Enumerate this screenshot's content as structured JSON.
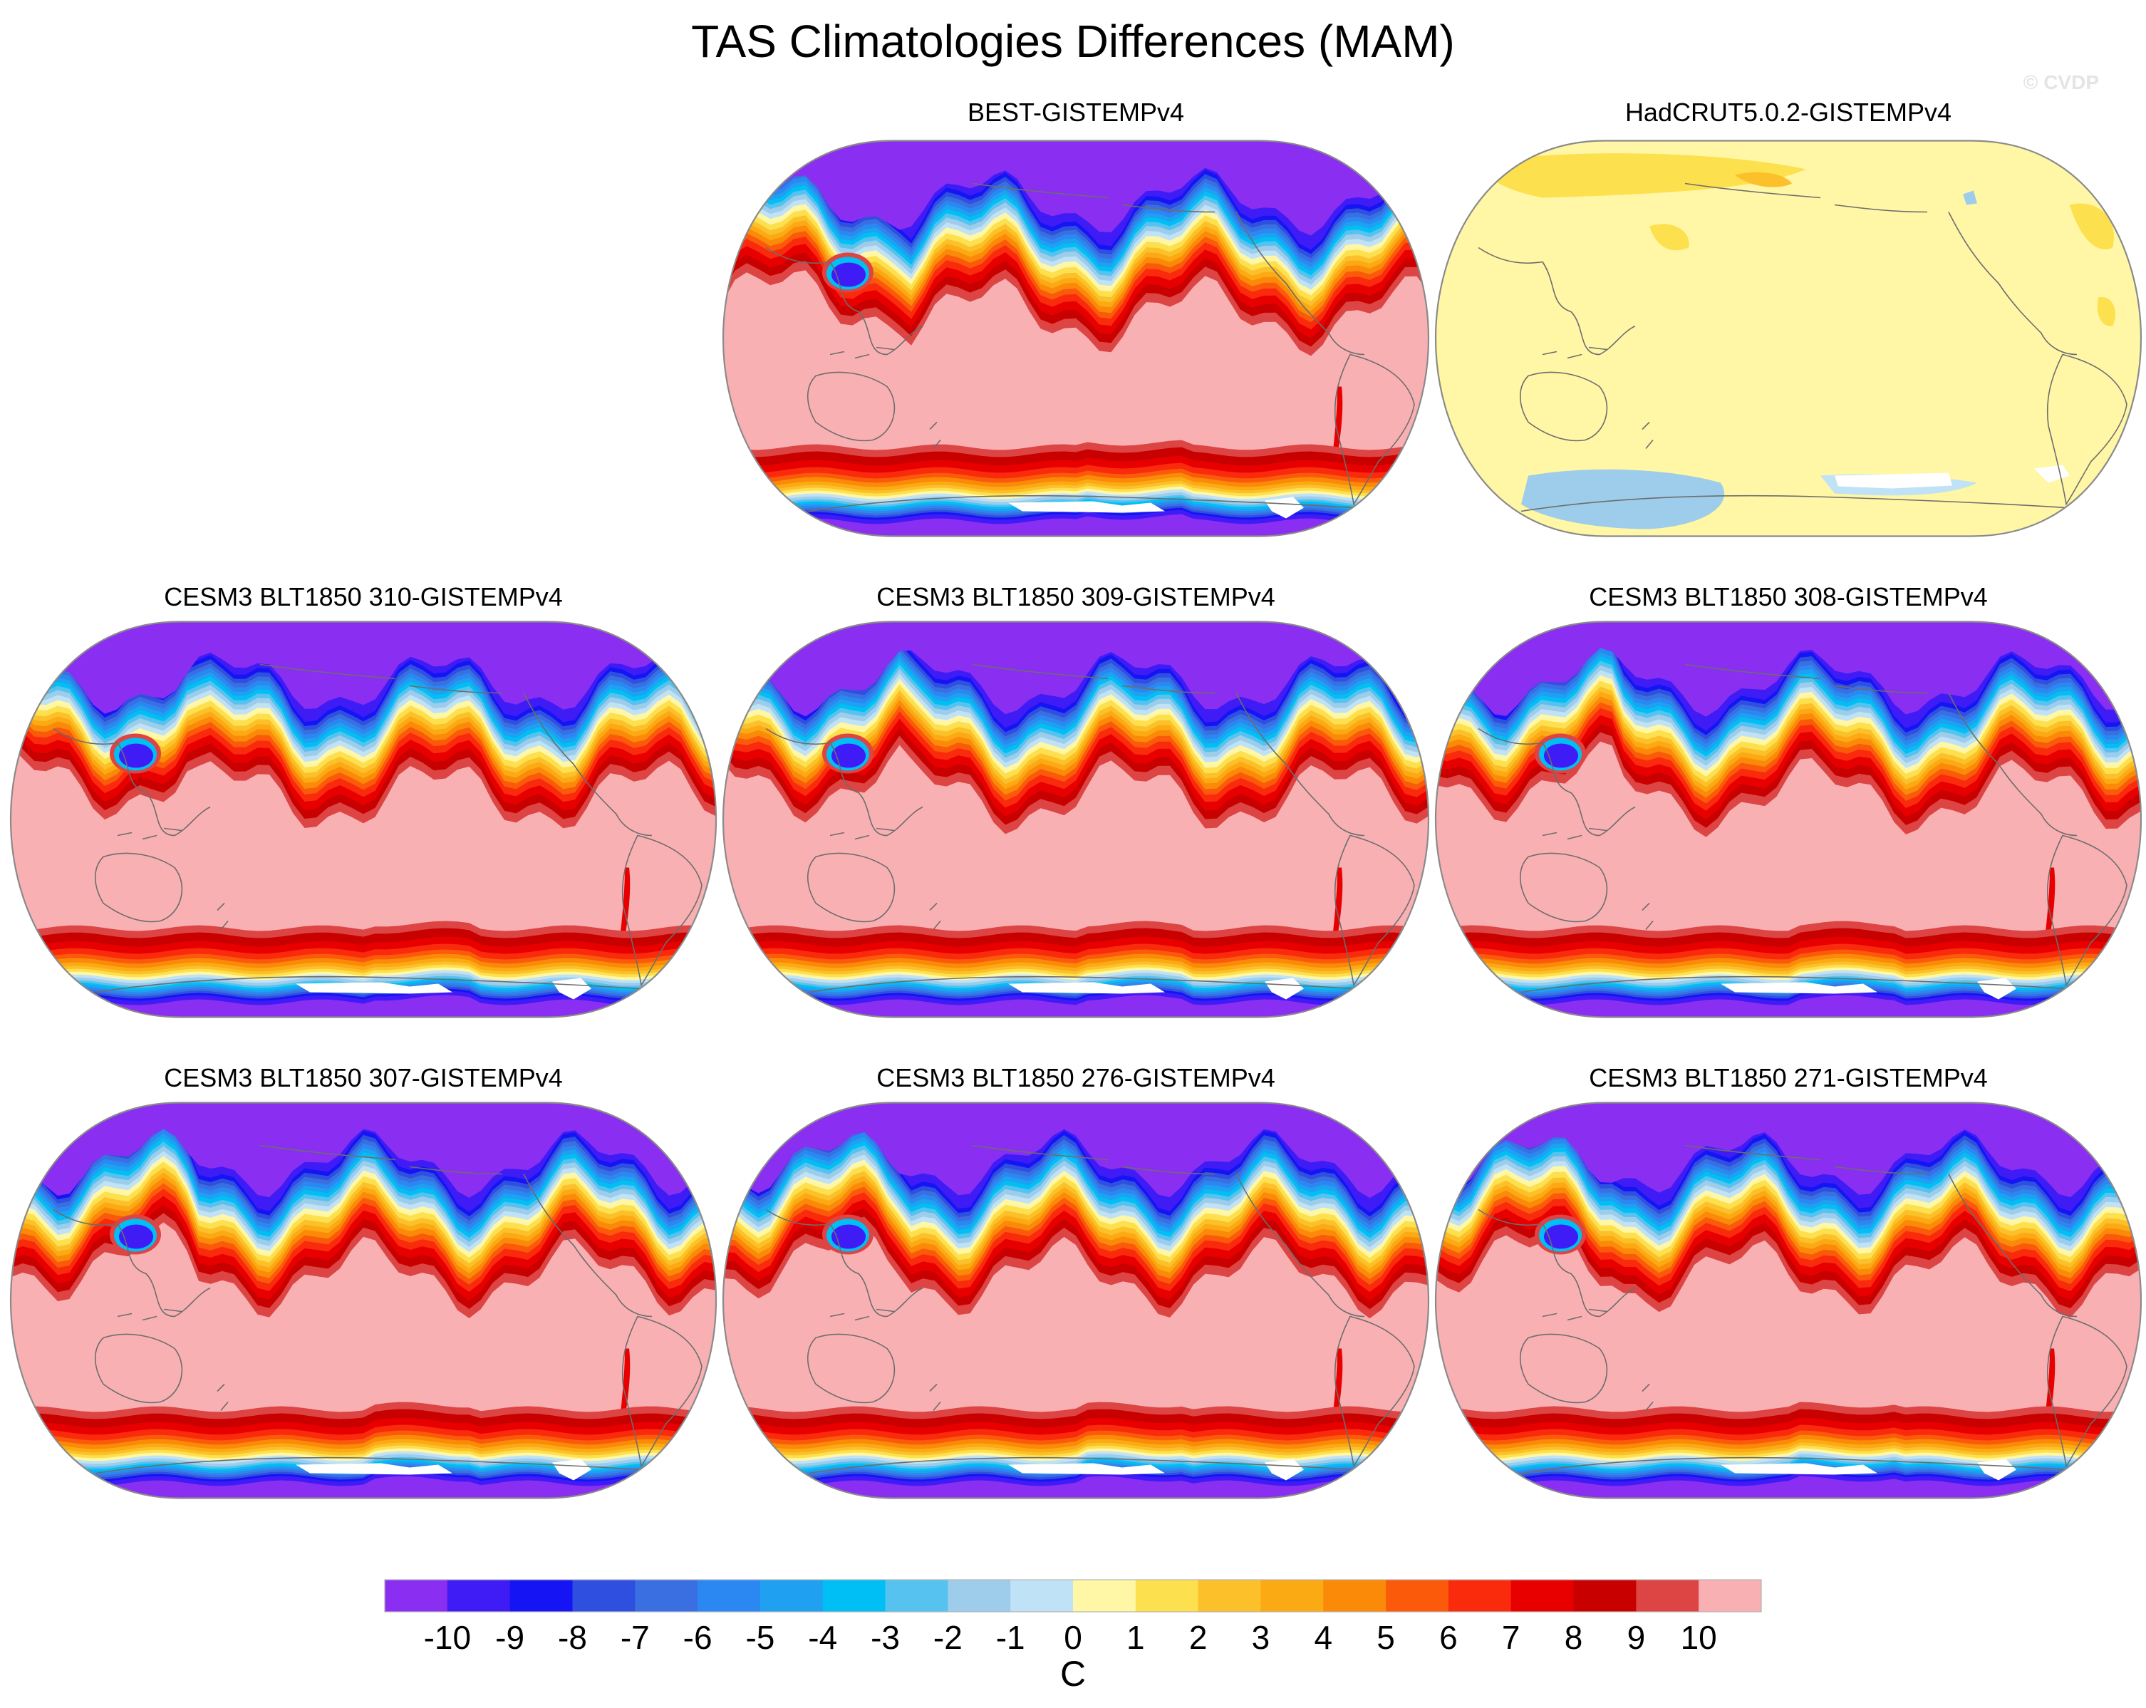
{
  "chart_data": {
    "type": "heatmap",
    "title": "TAS Climatologies Differences (MAM)",
    "watermark": "© CVDP",
    "projection": "robinson-like, Pacific-centered",
    "colorbar": {
      "unit": "C",
      "tick_labels": [
        "-10",
        "-9",
        "-8",
        "-7",
        "-6",
        "-5",
        "-4",
        "-3",
        "-2",
        "-1",
        "0",
        "1",
        "2",
        "3",
        "4",
        "5",
        "6",
        "7",
        "8",
        "9",
        "10"
      ],
      "levels": [
        -10,
        -9,
        -8,
        -7,
        -6,
        -5,
        -4,
        -3,
        -2,
        -1,
        0,
        1,
        2,
        3,
        4,
        5,
        6,
        7,
        8,
        9,
        10
      ],
      "colors": [
        "#8a2ef2",
        "#3f1cf5",
        "#1414f5",
        "#2f4fe0",
        "#3a6fe2",
        "#2b87f2",
        "#1fa0f0",
        "#00bff5",
        "#55c2f0",
        "#9dcdeb",
        "#bfe2f6",
        "#fff7a6",
        "#fde04d",
        "#fcc02a",
        "#fbaa14",
        "#fb8a08",
        "#fa5a0a",
        "#fa2a0c",
        "#e80000",
        "#c80000",
        "#dd4444",
        "#f9b0b3"
      ]
    },
    "panels": [
      {
        "title": "BEST-GISTEMPv4",
        "pattern": "anomaly-large",
        "field_summary": {
          "north_polar_min": -10,
          "mid_latitude_max": 10,
          "south_polar_min": -10
        }
      },
      {
        "title": "HadCRUT5.0.2-GISTEMPv4",
        "pattern": "near-zero",
        "field_summary": {
          "dominant_range": [
            0,
            1
          ],
          "max_local": 2,
          "min_local": -1
        }
      },
      {
        "title": "CESM3 BLT1850 310-GISTEMPv4",
        "pattern": "anomaly-large",
        "field_summary": {
          "north_polar_min": -10,
          "mid_latitude_max": 10,
          "south_polar_min": -10
        }
      },
      {
        "title": "CESM3 BLT1850 309-GISTEMPv4",
        "pattern": "anomaly-large",
        "field_summary": {
          "north_polar_min": -10,
          "mid_latitude_max": 10,
          "south_polar_min": -10
        }
      },
      {
        "title": "CESM3 BLT1850 308-GISTEMPv4",
        "pattern": "anomaly-large",
        "field_summary": {
          "north_polar_min": -10,
          "mid_latitude_max": 10,
          "south_polar_min": -10
        }
      },
      {
        "title": "CESM3 BLT1850 307-GISTEMPv4",
        "pattern": "anomaly-large",
        "field_summary": {
          "north_polar_min": -10,
          "mid_latitude_max": 10,
          "south_polar_min": -10
        }
      },
      {
        "title": "CESM3 BLT1850 276-GISTEMPv4",
        "pattern": "anomaly-large",
        "field_summary": {
          "north_polar_min": -10,
          "mid_latitude_max": 10,
          "south_polar_min": -10
        }
      },
      {
        "title": "CESM3 BLT1850 271-GISTEMPv4",
        "pattern": "anomaly-large",
        "field_summary": {
          "north_polar_min": -10,
          "mid_latitude_max": 10,
          "south_polar_min": -10
        }
      }
    ]
  }
}
